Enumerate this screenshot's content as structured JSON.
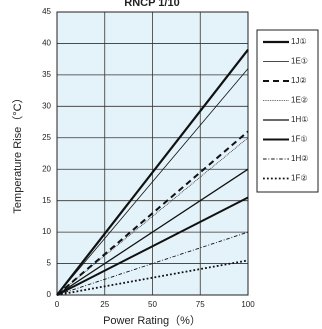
{
  "chart_data": {
    "type": "line",
    "title": "RNCP 1/10",
    "x_label": "Power Rating（%）",
    "y_label": "Temperature Rise（°C）",
    "x": [
      0,
      100
    ],
    "series": [
      {
        "name": "1J①",
        "color": "#111111",
        "style": "solid",
        "width": 2.2,
        "values": [
          0,
          39
        ]
      },
      {
        "name": "1E①",
        "color": "#111111",
        "style": "solid",
        "width": 0.8,
        "values": [
          0,
          36
        ]
      },
      {
        "name": "1J②",
        "color": "#111111",
        "style": "dashed",
        "width": 2,
        "values": [
          0,
          26
        ]
      },
      {
        "name": "1E②",
        "color": "#111111",
        "style": "dotted",
        "width": 0.8,
        "values": [
          0,
          25
        ]
      },
      {
        "name": "1H①",
        "color": "#111111",
        "style": "solid",
        "width": 1.3,
        "values": [
          0,
          20
        ]
      },
      {
        "name": "1F①",
        "color": "#111111",
        "style": "solid",
        "width": 2,
        "values": [
          0,
          15.5
        ]
      },
      {
        "name": "1H②",
        "color": "#111111",
        "style": "dashdot",
        "width": 0.9,
        "values": [
          0,
          10
        ]
      },
      {
        "name": "1F②",
        "color": "#111111",
        "style": "dotted",
        "width": 1.8,
        "values": [
          0,
          5.5
        ]
      }
    ],
    "xlim": [
      0,
      100
    ],
    "xticks": [
      0,
      25,
      50,
      75,
      100
    ],
    "ylim": [
      0,
      45
    ],
    "yticks": [
      0,
      5,
      10,
      15,
      20,
      25,
      30,
      35,
      40,
      45
    ],
    "grid": true,
    "plot_background": "#e4f2fa",
    "legend": "right"
  }
}
